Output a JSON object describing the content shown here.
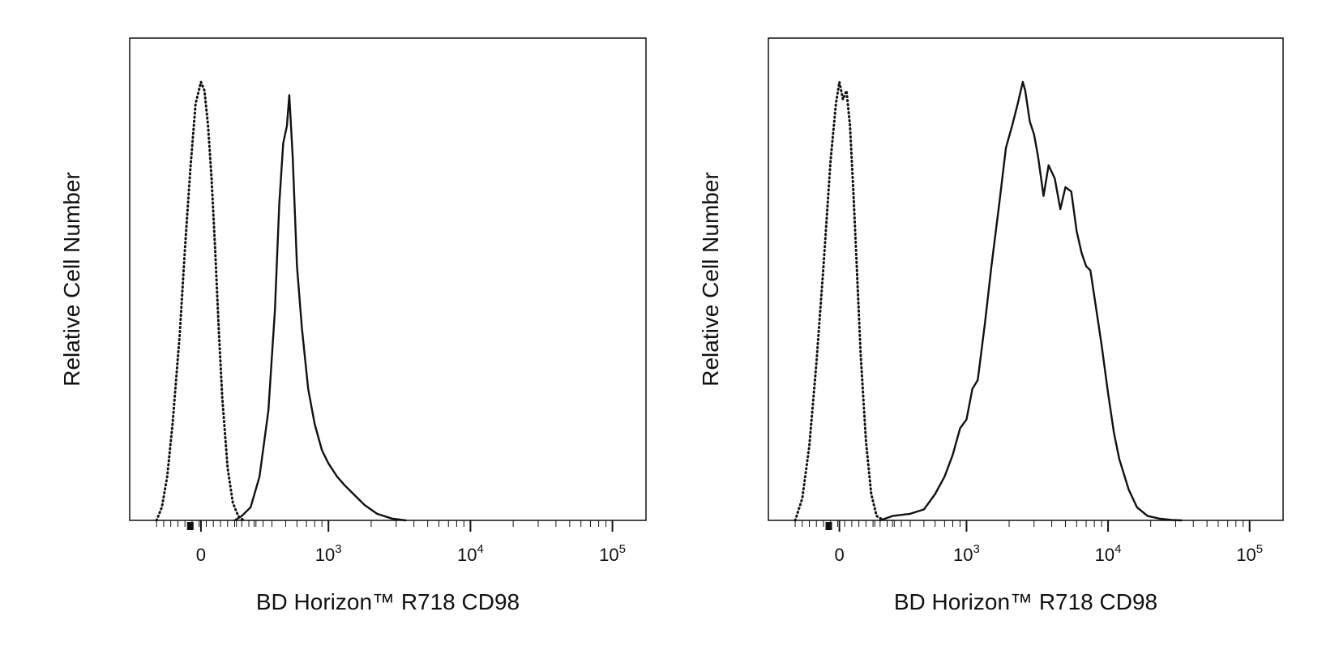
{
  "chart_data": [
    {
      "type": "line",
      "title": "",
      "xlabel": "BD Horizon™ R718 CD98",
      "ylabel": "Relative Cell Number",
      "x_scale": "biexponential",
      "xlim": [
        -300,
        200000
      ],
      "ylim": [
        0,
        1.1
      ],
      "grid": false,
      "x_tick_labels": [
        {
          "value": 0,
          "base": "0",
          "exp": ""
        },
        {
          "value": 1000,
          "base": "10",
          "exp": "3"
        },
        {
          "value": 10000,
          "base": "10",
          "exp": "4"
        },
        {
          "value": 100000,
          "base": "10",
          "exp": "5"
        }
      ],
      "series": [
        {
          "style": "dotted",
          "x": [
            -250,
            -220,
            -190,
            -160,
            -120,
            -90,
            -60,
            -30,
            0,
            20,
            40,
            60,
            80,
            100,
            120,
            150,
            180,
            210,
            240
          ],
          "y": [
            0.0,
            0.03,
            0.1,
            0.22,
            0.42,
            0.62,
            0.8,
            0.95,
            1.0,
            0.98,
            0.9,
            0.78,
            0.62,
            0.44,
            0.28,
            0.12,
            0.04,
            0.01,
            0.0
          ]
        },
        {
          "style": "solid",
          "x": [
            190,
            230,
            280,
            330,
            380,
            420,
            450,
            480,
            510,
            530,
            560,
            600,
            650,
            720,
            800,
            900,
            1000,
            1150,
            1300,
            1500,
            1800,
            2200,
            2800,
            3500
          ],
          "y": [
            0.0,
            0.01,
            0.03,
            0.1,
            0.25,
            0.48,
            0.72,
            0.86,
            0.9,
            0.97,
            0.83,
            0.58,
            0.44,
            0.3,
            0.22,
            0.16,
            0.13,
            0.1,
            0.08,
            0.06,
            0.035,
            0.015,
            0.004,
            0.0
          ]
        }
      ]
    },
    {
      "type": "line",
      "title": "",
      "xlabel": "BD Horizon™ R718 CD98",
      "ylabel": "Relative Cell Number",
      "x_scale": "biexponential",
      "xlim": [
        -300,
        200000
      ],
      "ylim": [
        0,
        1.1
      ],
      "grid": false,
      "x_tick_labels": [
        {
          "value": 0,
          "base": "0",
          "exp": ""
        },
        {
          "value": 1000,
          "base": "10",
          "exp": "3"
        },
        {
          "value": 10000,
          "base": "10",
          "exp": "4"
        },
        {
          "value": 100000,
          "base": "10",
          "exp": "5"
        }
      ],
      "series": [
        {
          "style": "dotted",
          "x": [
            -250,
            -210,
            -170,
            -130,
            -90,
            -50,
            -20,
            0,
            20,
            40,
            60,
            80,
            100,
            120,
            150,
            180,
            210,
            250
          ],
          "y": [
            0.0,
            0.05,
            0.17,
            0.36,
            0.58,
            0.82,
            0.95,
            1.0,
            0.96,
            0.98,
            0.9,
            0.74,
            0.56,
            0.38,
            0.18,
            0.06,
            0.01,
            0.0
          ]
        },
        {
          "style": "solid",
          "x": [
            230,
            300,
            400,
            500,
            600,
            700,
            800,
            900,
            1000,
            1100,
            1200,
            1350,
            1500,
            1700,
            1900,
            2100,
            2300,
            2500,
            2600,
            2800,
            3000,
            3200,
            3500,
            3800,
            4200,
            4600,
            5000,
            5500,
            6000,
            6500,
            7000,
            7500,
            8000,
            9000,
            10000,
            11000,
            12000,
            14000,
            16000,
            19000,
            23000,
            28000,
            33000
          ],
          "y": [
            0.0,
            0.01,
            0.015,
            0.025,
            0.06,
            0.1,
            0.15,
            0.21,
            0.23,
            0.3,
            0.32,
            0.45,
            0.58,
            0.72,
            0.85,
            0.9,
            0.95,
            1.0,
            0.98,
            0.91,
            0.88,
            0.83,
            0.74,
            0.81,
            0.78,
            0.71,
            0.76,
            0.75,
            0.66,
            0.61,
            0.58,
            0.57,
            0.51,
            0.4,
            0.29,
            0.2,
            0.14,
            0.07,
            0.03,
            0.01,
            0.004,
            0.001,
            0.0
          ]
        }
      ]
    }
  ]
}
